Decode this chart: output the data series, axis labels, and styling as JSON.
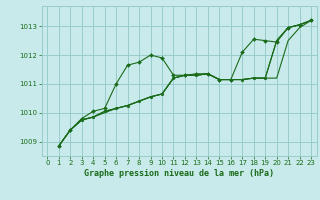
{
  "title": "Graphe pression niveau de la mer (hPa)",
  "background_color": "#c8eaea",
  "grid_color": "#98cccc",
  "line_color": "#1a6b1a",
  "xlim": [
    -0.5,
    23.5
  ],
  "ylim": [
    1008.5,
    1013.7
  ],
  "yticks": [
    1009,
    1010,
    1011,
    1012,
    1013
  ],
  "xticks": [
    0,
    1,
    2,
    3,
    4,
    5,
    6,
    7,
    8,
    9,
    10,
    11,
    12,
    13,
    14,
    15,
    16,
    17,
    18,
    19,
    20,
    21,
    22,
    23
  ],
  "s1_x": [
    1,
    2,
    3,
    4,
    5,
    6,
    7,
    8,
    9,
    10,
    11,
    12,
    13,
    14,
    15,
    16,
    17,
    18,
    19,
    20,
    21,
    22,
    23
  ],
  "s1_y": [
    1008.85,
    1009.4,
    1009.8,
    1010.05,
    1010.15,
    1011.0,
    1011.65,
    1011.75,
    1012.0,
    1011.9,
    1011.3,
    1011.3,
    1011.35,
    1011.35,
    1011.15,
    1011.15,
    1012.1,
    1012.55,
    1012.5,
    1012.45,
    1012.95,
    1013.05,
    1013.2
  ],
  "s2_x": [
    1,
    2,
    3,
    4,
    5,
    6,
    7,
    8,
    9,
    10,
    11,
    12,
    13,
    14,
    15,
    16,
    17,
    18,
    19,
    20,
    21,
    22,
    23
  ],
  "s2_y": [
    1008.85,
    1009.4,
    1009.75,
    1009.85,
    1010.05,
    1010.15,
    1010.25,
    1010.4,
    1010.55,
    1010.65,
    1011.2,
    1011.3,
    1011.3,
    1011.35,
    1011.15,
    1011.15,
    1011.15,
    1011.2,
    1011.2,
    1012.5,
    1012.95,
    1013.05,
    1013.2
  ],
  "s3_x": [
    1,
    2,
    3,
    4,
    5,
    6,
    7,
    8,
    9,
    10,
    11,
    12,
    13,
    14,
    15,
    16,
    17,
    18,
    19,
    20,
    21,
    22,
    23
  ],
  "s3_y": [
    1008.85,
    1009.4,
    1009.75,
    1009.85,
    1010.05,
    1010.15,
    1010.25,
    1010.4,
    1010.55,
    1010.65,
    1011.2,
    1011.3,
    1011.3,
    1011.35,
    1011.15,
    1011.15,
    1011.15,
    1011.2,
    1011.2,
    1012.5,
    1012.95,
    1013.05,
    1013.2
  ],
  "s4_x": [
    1,
    2,
    3,
    4,
    5,
    6,
    7,
    8,
    9,
    10,
    11,
    12,
    13,
    14,
    15,
    16,
    17,
    18,
    19,
    20,
    21,
    22,
    23
  ],
  "s4_y": [
    1008.85,
    1009.4,
    1009.75,
    1009.85,
    1010.0,
    1010.15,
    1010.25,
    1010.4,
    1010.55,
    1010.65,
    1011.2,
    1011.3,
    1011.3,
    1011.35,
    1011.15,
    1011.15,
    1011.15,
    1011.2,
    1011.2,
    1011.2,
    1012.5,
    1012.95,
    1013.2
  ]
}
